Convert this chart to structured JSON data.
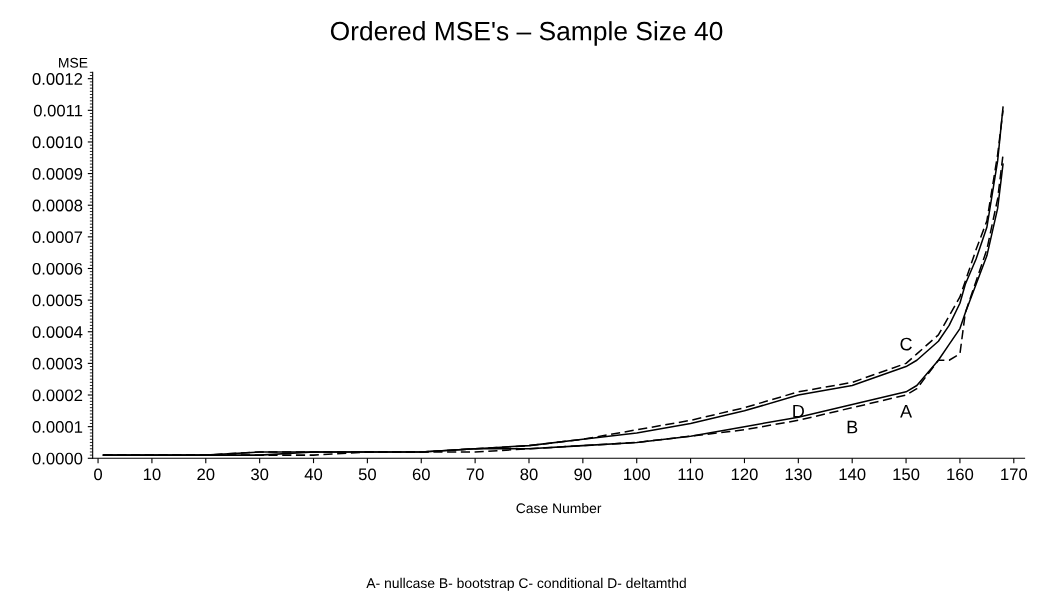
{
  "chart_data": {
    "type": "line",
    "title": "Ordered MSE's – Sample Size 40",
    "xlabel": "Case Number",
    "ylabel": "MSE",
    "x": [
      1,
      10,
      20,
      30,
      40,
      50,
      60,
      70,
      80,
      90,
      100,
      110,
      120,
      130,
      140,
      150,
      152,
      156,
      158,
      160,
      161,
      163,
      165,
      167,
      168
    ],
    "series": [
      {
        "color": "#000000",
        "line_style": "solid",
        "values": [
          1e-05,
          1e-05,
          1e-05,
          1e-05,
          2e-05,
          2e-05,
          2e-05,
          3e-05,
          3e-05,
          4e-05,
          5e-05,
          7e-05,
          0.0001,
          0.00013,
          0.00017,
          0.00021,
          0.00023,
          0.00031,
          0.00036,
          0.00041,
          0.00046,
          0.00055,
          0.00064,
          0.00079,
          0.00093
        ]
      },
      {
        "color": "#000000",
        "line_style": "dashed",
        "values": [
          1e-05,
          1e-05,
          1e-05,
          1e-05,
          1e-05,
          2e-05,
          2e-05,
          2e-05,
          3e-05,
          4e-05,
          5e-05,
          7e-05,
          9e-05,
          0.00012,
          0.00016,
          0.0002,
          0.00022,
          0.00031,
          0.00031,
          0.00033,
          0.00046,
          0.00056,
          0.00066,
          0.00082,
          0.00096
        ]
      },
      {
        "color": "#000000",
        "line_style": "solid",
        "values": [
          1e-05,
          1e-05,
          1e-05,
          2e-05,
          2e-05,
          2e-05,
          2e-05,
          3e-05,
          4e-05,
          6e-05,
          8e-05,
          0.00011,
          0.00015,
          0.0002,
          0.00023,
          0.00029,
          0.00031,
          0.00037,
          0.00042,
          0.00049,
          0.00055,
          0.00063,
          0.00073,
          0.00094,
          0.00111
        ]
      },
      {
        "color": "#000000",
        "line_style": "dashed",
        "values": [
          1e-05,
          1e-05,
          1e-05,
          2e-05,
          2e-05,
          2e-05,
          2e-05,
          3e-05,
          4e-05,
          6e-05,
          9e-05,
          0.00012,
          0.00016,
          0.00021,
          0.00024,
          0.0003,
          0.00033,
          0.00039,
          0.00045,
          0.00051,
          0.00056,
          0.00066,
          0.00075,
          0.00096,
          0.0011
        ]
      }
    ],
    "xlim": [
      -1,
      172
    ],
    "ylim": [
      0,
      0.00122
    ],
    "xticks": [
      0,
      10,
      20,
      30,
      40,
      50,
      60,
      70,
      80,
      90,
      100,
      110,
      120,
      130,
      140,
      150,
      160,
      170
    ],
    "yticks": [
      {
        "value": 0,
        "label": "0.0000"
      },
      {
        "value": 0.0001,
        "label": "0.0001"
      },
      {
        "value": 0.0002,
        "label": "0.0002"
      },
      {
        "value": 0.0003,
        "label": "0.0003"
      },
      {
        "value": 0.0004,
        "label": "0.0004"
      },
      {
        "value": 0.0005,
        "label": "0.0005"
      },
      {
        "value": 0.0006,
        "label": "0.0006"
      },
      {
        "value": 0.0007,
        "label": "0.0007"
      },
      {
        "value": 0.0008,
        "label": "0.0008"
      },
      {
        "value": 0.0009,
        "label": "0.0009"
      },
      {
        "value": 0.001,
        "label": "0.0010"
      },
      {
        "value": 0.0011,
        "label": "0.0011"
      },
      {
        "value": 0.0012,
        "label": "0.0012"
      }
    ],
    "grid": false,
    "legend": false,
    "marker": "none",
    "annotations": [
      {
        "text": "A",
        "x": 150,
        "y": 0.00021
      },
      {
        "text": "B",
        "x": 140,
        "y": 0.00016
      },
      {
        "text": "C",
        "x": 150,
        "y": 0.00029
      },
      {
        "text": "D",
        "x": 130,
        "y": 0.00021
      },
      "A- nullcase B- bootstrap C- conditional D- deltamthd"
    ]
  }
}
